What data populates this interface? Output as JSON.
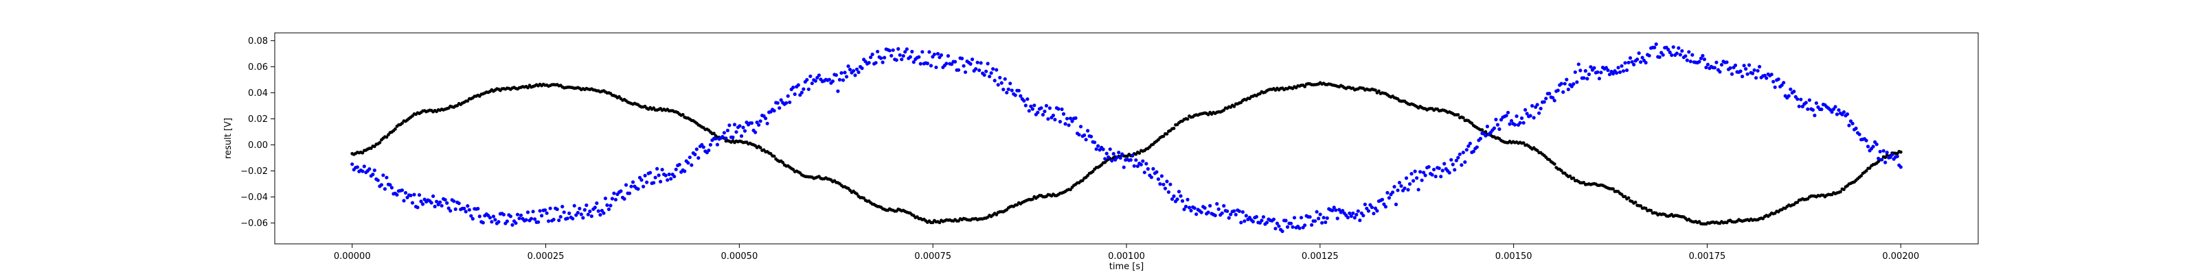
{
  "chart_data": {
    "type": "scatter",
    "title": "",
    "xlabel": "time [s]",
    "ylabel": "result [V]",
    "xlim": [
      -0.0001,
      0.0021
    ],
    "ylim": [
      -0.076,
      0.086
    ],
    "grid": false,
    "x_ticks": [
      0.0,
      0.00025,
      0.0005,
      0.00075,
      0.001,
      0.00125,
      0.0015,
      0.00175,
      0.002
    ],
    "x_tick_labels": [
      "0.00000",
      "0.00025",
      "0.00050",
      "0.00075",
      "0.00100",
      "0.00125",
      "0.00150",
      "0.00175",
      "0.00200"
    ],
    "y_ticks": [
      -0.06,
      -0.04,
      -0.02,
      0.0,
      0.02,
      0.04,
      0.06,
      0.08
    ],
    "y_tick_labels": [
      "−0.06",
      "−0.04",
      "−0.02",
      "0.00",
      "0.02",
      "0.04",
      "0.06",
      "0.08"
    ],
    "series": [
      {
        "color": "#000000",
        "x": [
          0.0,
          0.0001,
          0.0002,
          0.00025,
          0.0003,
          0.0004,
          0.0005,
          0.0006,
          0.0007,
          0.00075,
          0.0008,
          0.0009,
          0.001,
          0.0011,
          0.0012,
          0.00125,
          0.0013,
          0.0014,
          0.0015,
          0.0016,
          0.0017,
          0.00175,
          0.0018,
          0.0019,
          0.002
        ],
        "values": [
          -0.007,
          0.026,
          0.043,
          0.046,
          0.043,
          0.027,
          0.002,
          -0.025,
          -0.05,
          -0.059,
          -0.057,
          -0.039,
          -0.008,
          0.024,
          0.043,
          0.047,
          0.043,
          0.027,
          0.002,
          -0.03,
          -0.054,
          -0.06,
          -0.058,
          -0.039,
          -0.006
        ]
      },
      {
        "color": "#0000ff",
        "x": [
          0.0,
          0.0001,
          0.0002,
          0.0003,
          0.0004,
          0.0005,
          0.0006,
          0.0007,
          0.0008,
          0.0009,
          0.001,
          0.0011,
          0.0012,
          0.0013,
          0.0014,
          0.0015,
          0.0016,
          0.0017,
          0.0018,
          0.0019,
          0.002
        ],
        "values": [
          -0.02,
          -0.044,
          -0.058,
          -0.051,
          -0.023,
          0.011,
          0.048,
          0.07,
          0.061,
          0.025,
          -0.012,
          -0.05,
          -0.061,
          -0.051,
          -0.02,
          0.02,
          0.055,
          0.071,
          0.057,
          0.027,
          -0.013
        ]
      }
    ]
  }
}
